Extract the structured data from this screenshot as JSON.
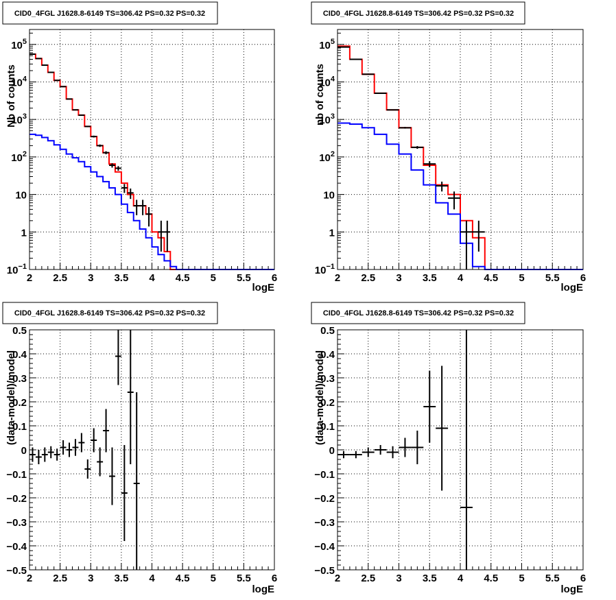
{
  "colors": {
    "data": "#000000",
    "model_total": "#ff0000",
    "model_background": "#0000ff",
    "grid": "#000000"
  },
  "chart_data": [
    {
      "type": "line",
      "title": "CID0_4FGL J1628.8-6149 TS=306.42 PS=0.32 PS=0.32",
      "xlabel": "logE",
      "ylabel": "Nb of counts",
      "yscale": "log",
      "xlim": [
        2,
        6
      ],
      "ylim": [
        0.1,
        250000
      ],
      "xtick_labels": [
        "2",
        "2.5",
        "3",
        "3.5",
        "4",
        "4.5",
        "5",
        "5.5",
        "6"
      ],
      "ytick_labels": [
        "10^-1",
        "1",
        "10",
        "10^2",
        "10^3",
        "10^4",
        "10^5"
      ],
      "grid": true,
      "series": [
        {
          "color": "red",
          "style": "histogram",
          "bin_edges": [
            2.0,
            2.1,
            2.2,
            2.3,
            2.4,
            2.5,
            2.6,
            2.7,
            2.8,
            2.9,
            3.0,
            3.1,
            3.2,
            3.3,
            3.4,
            3.5,
            3.6,
            3.7,
            3.8,
            3.9,
            4.0,
            4.1,
            4.2,
            4.3,
            4.4,
            4.5,
            4.6,
            4.7,
            4.8,
            4.9,
            5.0,
            5.1,
            5.2,
            5.3,
            5.4,
            5.5,
            5.6,
            5.7,
            5.8,
            5.9,
            6.0
          ],
          "values": [
            55000,
            42000,
            28000,
            18000,
            11000,
            7500,
            3500,
            1800,
            1300,
            650,
            350,
            200,
            130,
            65,
            40,
            20,
            10,
            5,
            5,
            3,
            1,
            0.7,
            0.3,
            0.1,
            0.1,
            0.1,
            0.1,
            0.1,
            0.1,
            0.1,
            0.1,
            0.1,
            0.1,
            0.1,
            0.1,
            0.1,
            0.1,
            0.1,
            0.1,
            0.1
          ]
        },
        {
          "color": "blue",
          "style": "histogram",
          "bin_edges": [
            2.0,
            2.1,
            2.2,
            2.3,
            2.4,
            2.5,
            2.6,
            2.7,
            2.8,
            2.9,
            3.0,
            3.1,
            3.2,
            3.3,
            3.4,
            3.5,
            3.6,
            3.7,
            3.8,
            3.9,
            4.0,
            4.1,
            4.2,
            4.3,
            4.4,
            4.5,
            4.6,
            4.7,
            4.8,
            4.9,
            5.0,
            5.1,
            5.2,
            5.3,
            5.4,
            5.5,
            5.6,
            5.7,
            5.8,
            5.9,
            6.0
          ],
          "values": [
            400,
            380,
            330,
            270,
            210,
            160,
            120,
            95,
            75,
            55,
            40,
            30,
            22,
            15,
            10,
            5.5,
            3.3,
            2,
            1.2,
            0.7,
            0.4,
            0.25,
            0.17,
            0.12,
            0.1,
            0.1,
            0.1,
            0.1,
            0.1,
            0.1,
            0.1,
            0.1,
            0.1,
            0.1,
            0.1,
            0.1,
            0.1,
            0.1,
            0.1,
            0.1
          ]
        },
        {
          "color": "black",
          "style": "errorbars",
          "x": [
            2.05,
            2.15,
            2.25,
            2.35,
            2.45,
            2.55,
            2.65,
            2.75,
            2.85,
            2.95,
            3.05,
            3.15,
            3.25,
            3.35,
            3.45,
            3.55,
            3.65,
            3.75,
            3.85,
            3.95,
            4.15,
            4.25
          ],
          "y": [
            55000,
            42000,
            28000,
            18000,
            11000,
            7500,
            3500,
            1800,
            1300,
            650,
            350,
            200,
            130,
            60,
            50,
            15,
            11,
            5,
            5,
            3,
            1,
            1
          ],
          "xerr": [
            0.05,
            0.05,
            0.05,
            0.05,
            0.05,
            0.05,
            0.05,
            0.05,
            0.05,
            0.05,
            0.05,
            0.05,
            0.05,
            0.05,
            0.05,
            0.05,
            0.05,
            0.05,
            0.05,
            0.05,
            0.05,
            0.05
          ],
          "ylo": [
            54500,
            41600,
            27700,
            17800,
            10900,
            7400,
            3440,
            1760,
            1260,
            625,
            330,
            185,
            118,
            52,
            43,
            11,
            7.6,
            2.8,
            2.8,
            1.4,
            0.3,
            0.3
          ],
          "yhi": [
            55500,
            42400,
            28300,
            18200,
            11100,
            7600,
            3560,
            1840,
            1340,
            675,
            370,
            215,
            142,
            68,
            57,
            19,
            14.4,
            7.2,
            7.2,
            4.6,
            2,
            2
          ]
        }
      ]
    },
    {
      "type": "line",
      "title": "CID0_4FGL J1628.8-6149 TS=306.42 PS=0.32 PS=0.32",
      "xlabel": "logE",
      "ylabel": "nb of counts",
      "yscale": "log",
      "xlim": [
        2,
        6
      ],
      "ylim": [
        0.1,
        250000
      ],
      "xtick_labels": [
        "2",
        "2.5",
        "3",
        "3.5",
        "4",
        "4.5",
        "5",
        "5.5",
        "6"
      ],
      "ytick_labels": [
        "10^-1",
        "1",
        "10",
        "10^2",
        "10^3",
        "10^4",
        "10^5"
      ],
      "grid": true,
      "series": [
        {
          "color": "red",
          "style": "histogram",
          "bin_edges": [
            2.0,
            2.2,
            2.4,
            2.6,
            2.8,
            3.0,
            3.2,
            3.4,
            3.6,
            3.8,
            4.0,
            4.2,
            4.4,
            4.6,
            4.8,
            5.0,
            5.2,
            5.4,
            5.6,
            5.8,
            6.0
          ],
          "values": [
            90000,
            40000,
            16000,
            5000,
            1800,
            600,
            180,
            60,
            18,
            10,
            2,
            0.7,
            0.1,
            0.1,
            0.1,
            0.1,
            0.1,
            0.1,
            0.1,
            0.1
          ]
        },
        {
          "color": "blue",
          "style": "histogram",
          "bin_edges": [
            2.0,
            2.2,
            2.4,
            2.6,
            2.8,
            3.0,
            3.2,
            3.4,
            3.6,
            3.8,
            4.0,
            4.2,
            4.4,
            4.6,
            4.8,
            5.0,
            5.2,
            5.4,
            5.6,
            5.8,
            6.0
          ],
          "values": [
            800,
            750,
            600,
            400,
            220,
            120,
            45,
            18,
            6,
            3,
            0.5,
            0.12,
            0.1,
            0.1,
            0.1,
            0.1,
            0.1,
            0.1,
            0.1,
            0.1
          ]
        },
        {
          "color": "black",
          "style": "errorbars",
          "x": [
            2.1,
            2.3,
            2.5,
            2.7,
            2.9,
            3.1,
            3.3,
            3.5,
            3.7,
            3.9,
            4.1,
            4.3
          ],
          "y": [
            85000,
            40000,
            16000,
            5000,
            1800,
            600,
            180,
            65,
            17,
            8,
            1,
            1
          ],
          "xerr": [
            0.1,
            0.1,
            0.1,
            0.1,
            0.1,
            0.1,
            0.1,
            0.1,
            0.1,
            0.1,
            0.1,
            0.1
          ],
          "ylo": [
            84500,
            39700,
            15800,
            4900,
            1750,
            570,
            165,
            53,
            12,
            4,
            0.1,
            0.3
          ],
          "yhi": [
            85500,
            40300,
            16200,
            5100,
            1850,
            630,
            195,
            77,
            22,
            12,
            2,
            2
          ]
        }
      ]
    },
    {
      "type": "scatter",
      "title": "CID0_4FGL J1628.8-6149 TS=306.42 PS=0.32 PS=0.32",
      "xlabel": "logE",
      "ylabel": "(data-model)/model",
      "xlim": [
        2,
        6
      ],
      "ylim": [
        -0.5,
        0.5
      ],
      "xtick_labels": [
        "2",
        "2.5",
        "3",
        "3.5",
        "4",
        "4.5",
        "5",
        "5.5",
        "6"
      ],
      "ytick_labels": [
        "-0.5",
        "-0.4",
        "-0.3",
        "-0.2",
        "-0.1",
        "0",
        "0.1",
        "0.2",
        "0.3",
        "0.4",
        "0.5"
      ],
      "grid": true,
      "series": [
        {
          "color": "black",
          "style": "errorbars",
          "x": [
            2.05,
            2.15,
            2.25,
            2.35,
            2.45,
            2.55,
            2.65,
            2.75,
            2.85,
            2.95,
            3.05,
            3.15,
            3.25,
            3.35,
            3.45,
            3.55,
            3.65,
            3.75
          ],
          "y": [
            -0.02,
            -0.03,
            -0.02,
            -0.01,
            -0.02,
            0.01,
            0.0,
            0.01,
            0.03,
            -0.08,
            0.04,
            -0.05,
            0.08,
            -0.11,
            0.39,
            -0.18,
            0.24,
            -0.14
          ],
          "xerr": [
            0.05,
            0.05,
            0.05,
            0.05,
            0.05,
            0.05,
            0.05,
            0.05,
            0.05,
            0.05,
            0.05,
            0.05,
            0.05,
            0.05,
            0.05,
            0.05,
            0.05,
            0.05
          ],
          "yerr": [
            0.03,
            0.03,
            0.03,
            0.025,
            0.025,
            0.03,
            0.03,
            0.035,
            0.04,
            0.04,
            0.05,
            0.06,
            0.09,
            0.12,
            0.12,
            0.2,
            0.3,
            0.38
          ]
        }
      ]
    },
    {
      "type": "scatter",
      "title": "CID0_4FGL J1628.8-6149 TS=306.42 PS=0.32 PS=0.32",
      "xlabel": "logE",
      "ylabel": "(data-model)/model",
      "xlim": [
        2,
        6
      ],
      "ylim": [
        -0.5,
        0.5
      ],
      "xtick_labels": [
        "2",
        "2.5",
        "3",
        "3.5",
        "4",
        "4.5",
        "5",
        "5.5",
        "6"
      ],
      "ytick_labels": [
        "-0.5",
        "-0.4",
        "-0.3",
        "-0.2",
        "-0.1",
        "0",
        "0.1",
        "0.2",
        "0.3",
        "0.4",
        "0.5"
      ],
      "grid": true,
      "series": [
        {
          "color": "black",
          "style": "errorbars",
          "x": [
            2.1,
            2.3,
            2.5,
            2.7,
            2.9,
            3.1,
            3.3,
            3.5,
            3.7,
            4.1
          ],
          "y": [
            -0.02,
            -0.02,
            -0.01,
            0.0,
            -0.01,
            0.01,
            0.01,
            0.18,
            0.09,
            -0.24
          ],
          "xerr": [
            0.1,
            0.1,
            0.1,
            0.1,
            0.1,
            0.1,
            0.1,
            0.1,
            0.1,
            0.1
          ],
          "yerr": [
            0.015,
            0.015,
            0.02,
            0.02,
            0.025,
            0.04,
            0.07,
            0.15,
            0.26,
            0.9
          ]
        }
      ]
    }
  ]
}
